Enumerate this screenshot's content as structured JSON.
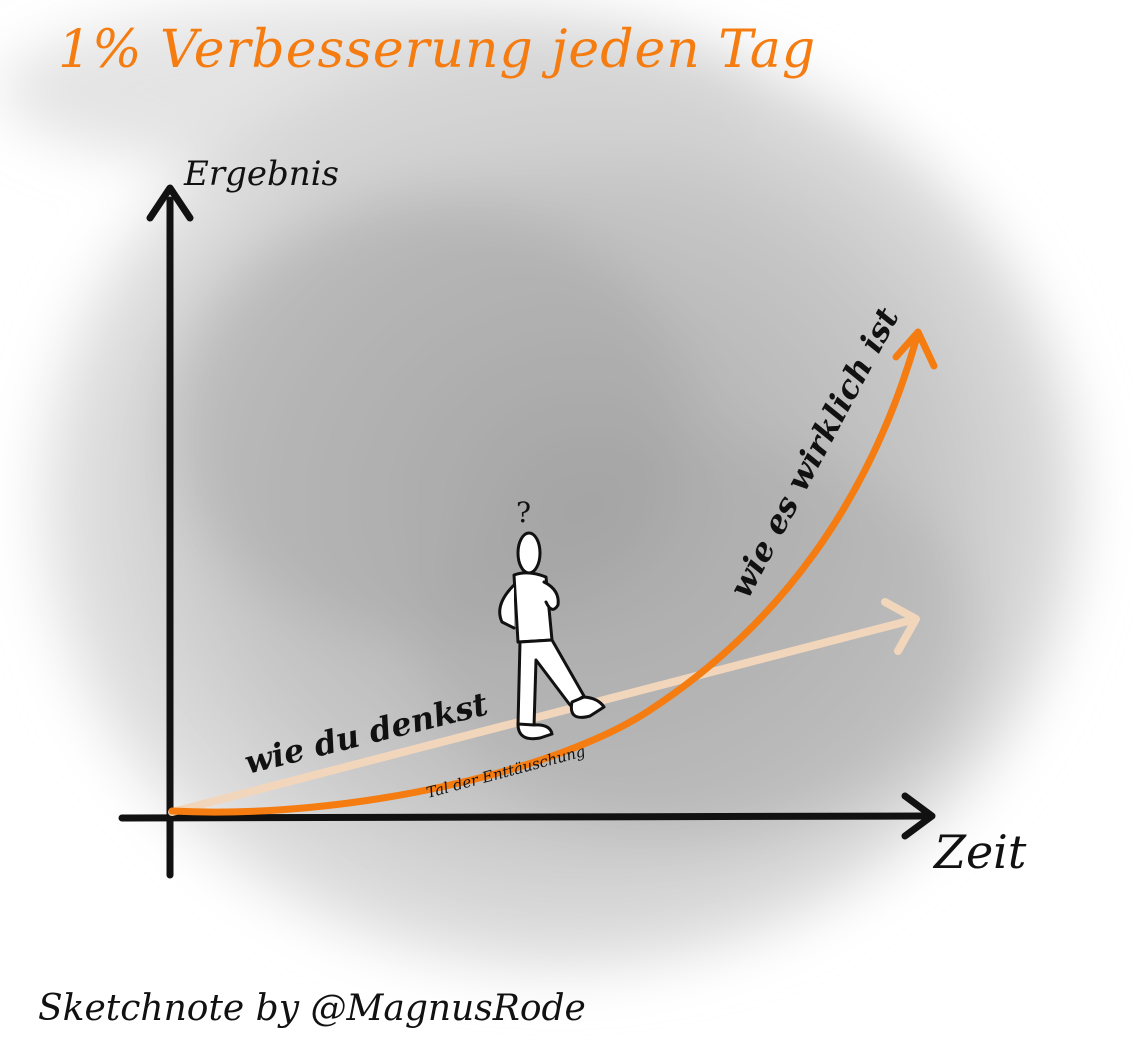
{
  "title": "1% Verbesserung jeden Tag",
  "y_axis_label": "Ergebnis",
  "x_axis_label": "Zeit",
  "curve_expected_label": "wie du denkst",
  "curve_actual_label": "wie es wirklich ist",
  "valley_label": "Tal der Enttäuschung",
  "figure_mark": "?",
  "credit": "Sketchnote by @MagnusRode",
  "colors": {
    "accent": "#f47c10",
    "expected_line": "#f2d6bc",
    "ink": "#111111",
    "background": "#c8c8c8"
  }
}
